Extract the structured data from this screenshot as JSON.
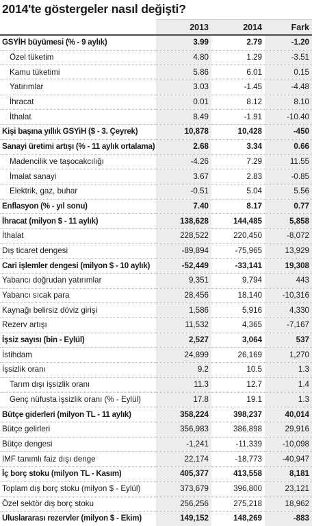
{
  "title": "2014'te göstergeler nasıl değişti?",
  "headers": [
    "",
    "2013",
    "2014",
    "Fark"
  ],
  "rows": [
    {
      "label": "GSYİH büyümesi (% - 9 aylık)",
      "v2013": "3.99",
      "v2014": "2.79",
      "diff": "-1.20",
      "bold": true,
      "indent": false
    },
    {
      "label": "Özel tüketim",
      "v2013": "4.80",
      "v2014": "1.29",
      "diff": "-3.51",
      "bold": false,
      "indent": true
    },
    {
      "label": "Kamu tüketimi",
      "v2013": "5.86",
      "v2014": "6.01",
      "diff": "0.15",
      "bold": false,
      "indent": true
    },
    {
      "label": "Yatırımlar",
      "v2013": "3.03",
      "v2014": "-1.45",
      "diff": "-4.48",
      "bold": false,
      "indent": true
    },
    {
      "label": "İhracat",
      "v2013": "0.01",
      "v2014": "8.12",
      "diff": "8.10",
      "bold": false,
      "indent": true
    },
    {
      "label": "İthalat",
      "v2013": "8.49",
      "v2014": "-1.91",
      "diff": "-10.40",
      "bold": false,
      "indent": true
    },
    {
      "label": "Kişi başına yıllık GSYiH ($ - 3. Çeyrek)",
      "v2013": "10,878",
      "v2014": "10,428",
      "diff": "-450",
      "bold": true,
      "indent": false
    },
    {
      "label": "Sanayi üretimi artışı (% - 11 aylık ortalama)",
      "v2013": "2.68",
      "v2014": "3.34",
      "diff": "0.66",
      "bold": true,
      "indent": false
    },
    {
      "label": "Madencilik ve taşocakcılığı",
      "v2013": "-4.26",
      "v2014": "7.29",
      "diff": "11.55",
      "bold": false,
      "indent": true
    },
    {
      "label": "İmalat sanayi",
      "v2013": "3.67",
      "v2014": "2.83",
      "diff": "-0.85",
      "bold": false,
      "indent": true
    },
    {
      "label": "Elektrik, gaz, buhar",
      "v2013": "-0.51",
      "v2014": "5.04",
      "diff": "5.56",
      "bold": false,
      "indent": true
    },
    {
      "label": "Enflasyon (% - yıl sonu)",
      "v2013": "7.40",
      "v2014": "8.17",
      "diff": "0.77",
      "bold": true,
      "indent": false
    },
    {
      "label": "İhracat (milyon $ - 11 aylık)",
      "v2013": "138,628",
      "v2014": "144,485",
      "diff": "5,858",
      "bold": true,
      "indent": false
    },
    {
      "label": "İthalat",
      "v2013": "228,522",
      "v2014": "220,450",
      "diff": "-8,072",
      "bold": false,
      "indent": false
    },
    {
      "label": "Dış ticaret dengesi",
      "v2013": "-89,894",
      "v2014": "-75,965",
      "diff": "13,929",
      "bold": false,
      "indent": false
    },
    {
      "label": "Cari işlemler dengesi (milyon $ - 10 aylık)",
      "v2013": "-52,449",
      "v2014": "-33,141",
      "diff": "19,308",
      "bold": true,
      "indent": false
    },
    {
      "label": "Yabancı doğrudan yatırımlar",
      "v2013": "9,351",
      "v2014": "9,794",
      "diff": "443",
      "bold": false,
      "indent": false
    },
    {
      "label": "Yabancı sıcak para",
      "v2013": "28,456",
      "v2014": "18,140",
      "diff": "-10,316",
      "bold": false,
      "indent": false
    },
    {
      "label": "Kaynağı belirsiz döviz girişi",
      "v2013": "1,586",
      "v2014": "5,916",
      "diff": "4,330",
      "bold": false,
      "indent": false
    },
    {
      "label": "Rezerv artışı",
      "v2013": "11,532",
      "v2014": "4,365",
      "diff": "-7,167",
      "bold": false,
      "indent": false
    },
    {
      "label": "İşsiz sayısı (bin - Eylül)",
      "v2013": "2,527",
      "v2014": "3,064",
      "diff": "537",
      "bold": true,
      "indent": false
    },
    {
      "label": "İstihdam",
      "v2013": "24,899",
      "v2014": "26,169",
      "diff": "1,270",
      "bold": false,
      "indent": false
    },
    {
      "label": "İşsizlik oranı",
      "v2013": "9.2",
      "v2014": "10.5",
      "diff": "1.3",
      "bold": false,
      "indent": false
    },
    {
      "label": "Tarım dışı işsizlik oranı",
      "v2013": "11.3",
      "v2014": "12.7",
      "diff": "1.4",
      "bold": false,
      "indent": true
    },
    {
      "label": "Genç nüfusta işsizlik oranı (% - Eylül)",
      "v2013": "17.8",
      "v2014": "19.1",
      "diff": "1.3",
      "bold": false,
      "indent": true
    },
    {
      "label": "Bütçe giderleri (milyon TL - 11 aylık)",
      "v2013": "358,224",
      "v2014": "398,237",
      "diff": "40,014",
      "bold": true,
      "indent": false
    },
    {
      "label": "Bütçe gelirleri",
      "v2013": "356,983",
      "v2014": "386,898",
      "diff": "29,916",
      "bold": false,
      "indent": false
    },
    {
      "label": "Bütçe dengesi",
      "v2013": "-1,241",
      "v2014": "-11,339",
      "diff": "-10,098",
      "bold": false,
      "indent": false
    },
    {
      "label": "IMF tanımlı faiz dışı denge",
      "v2013": "22,174",
      "v2014": "-18,773",
      "diff": "-40,947",
      "bold": false,
      "indent": false
    },
    {
      "label": "İç borç stoku (milyon TL - Kasım)",
      "v2013": "405,377",
      "v2014": "413,558",
      "diff": "8,181",
      "bold": true,
      "indent": false
    },
    {
      "label": "Toplam dış borç stoku (milyon $ - Eylül)",
      "v2013": "373,679",
      "v2014": "396,800",
      "diff": "23,121",
      "bold": false,
      "indent": false
    },
    {
      "label": "Özel sektör dış borç stoku",
      "v2013": "256,256",
      "v2014": "275,218",
      "diff": "18,962",
      "bold": false,
      "indent": false
    },
    {
      "label": "Uluslararası rezervler (milyon $ - Ekim)",
      "v2013": "149,152",
      "v2014": "148,269",
      "diff": "-883",
      "bold": true,
      "indent": false
    }
  ],
  "colors": {
    "shade": "#ececec",
    "rule": "#4a4a4a",
    "dots": "#b8b8b8",
    "text": "#1a1a1a"
  }
}
